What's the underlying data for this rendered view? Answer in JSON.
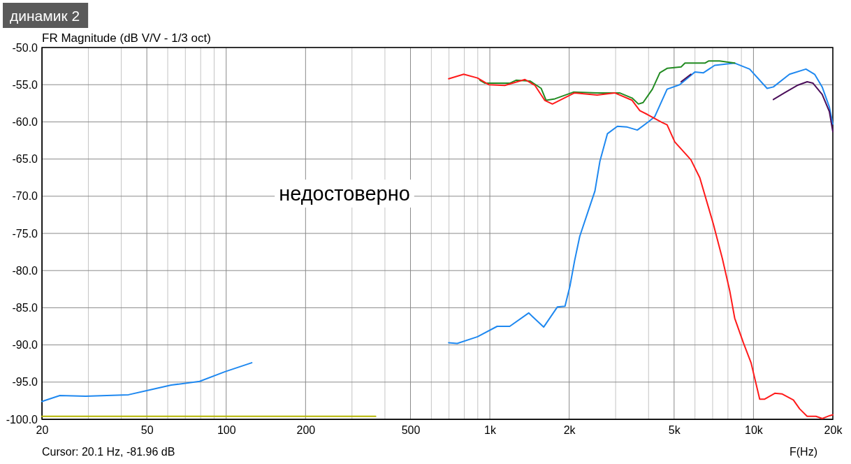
{
  "chart_data": {
    "type": "line",
    "title": "FR Magnitude (dB V/V - 1/3 oct)",
    "xlabel": "F(Hz)",
    "log": "x",
    "grid": true,
    "xlim": [
      20,
      20000
    ],
    "ylim": [
      -100,
      -50
    ],
    "xticks": [
      20,
      {
        "value": 30,
        "label": null
      },
      {
        "value": 40,
        "label": null
      },
      50,
      {
        "value": 60,
        "label": null
      },
      {
        "value": 70,
        "label": null
      },
      {
        "value": 80,
        "label": null
      },
      {
        "value": 90,
        "label": null
      },
      100,
      200,
      {
        "value": 300,
        "label": null
      },
      {
        "value": 400,
        "label": null
      },
      500,
      {
        "value": 600,
        "label": null
      },
      {
        "value": 700,
        "label": null
      },
      {
        "value": 800,
        "label": null
      },
      {
        "value": 900,
        "label": null
      },
      {
        "value": 1000,
        "label": "1k"
      },
      {
        "value": 2000,
        "label": "2k"
      },
      {
        "value": 3000,
        "label": null
      },
      {
        "value": 4000,
        "label": null
      },
      {
        "value": 5000,
        "label": "5k"
      },
      {
        "value": 6000,
        "label": null
      },
      {
        "value": 7000,
        "label": null
      },
      {
        "value": 8000,
        "label": null
      },
      {
        "value": 9000,
        "label": null
      },
      {
        "value": 10000,
        "label": "10k"
      },
      {
        "value": 20000,
        "label": "20k"
      }
    ],
    "yticks": [
      {
        "value": -50,
        "label": "-50.0"
      },
      {
        "value": -55,
        "label": "-55.0"
      },
      {
        "value": -60,
        "label": "-60.0"
      },
      {
        "value": -65,
        "label": "-65.0"
      },
      {
        "value": -70,
        "label": "-70.0"
      },
      {
        "value": -75,
        "label": "-75.0"
      },
      {
        "value": -80,
        "label": "-80.0"
      },
      {
        "value": -85,
        "label": "-85.0"
      },
      {
        "value": -90,
        "label": "-90.0"
      },
      {
        "value": -95,
        "label": "-95.0"
      },
      {
        "value": -100,
        "label": "-100.0"
      }
    ],
    "line_style": "solid",
    "annotations": [
      "динамик 2",
      "недостоверно",
      "Cursor: 20.1 Hz, -81.96 dB"
    ],
    "series": [
      {
        "color": "#b5b500",
        "x": [
          20,
          369
        ],
        "values": [
          -99.6,
          -99.6
        ]
      },
      {
        "color": "#1e88f0",
        "x": [
          20,
          23.4,
          29.3,
          42.6,
          50.6,
          61.9,
          79.3,
          99,
          125,
          300,
          698,
          752,
          898,
          1066,
          1190,
          1404,
          1600,
          1803,
          1928,
          2013,
          2096,
          2193,
          2397,
          2504,
          2615,
          2792,
          3047,
          3320,
          3626,
          3957,
          4223,
          4703,
          5248,
          5992,
          6461,
          7125,
          8488,
          9670,
          11265,
          11900,
          13695,
          15810,
          17060,
          18220,
          19400,
          20000
        ],
        "values": [
          -97.6,
          -96.8,
          -96.9,
          -96.7,
          -96.1,
          -95.4,
          -94.9,
          -93.6,
          -92.4,
          null,
          -89.7,
          -89.8,
          -88.9,
          -87.5,
          -87.5,
          -85.7,
          -87.6,
          -84.9,
          -84.8,
          -82.1,
          -78.7,
          -75.4,
          -71.3,
          -69.3,
          -65.3,
          -61.6,
          -60.6,
          -60.7,
          -61.1,
          -60.1,
          -59.3,
          -55.6,
          -55,
          -53.3,
          -53.4,
          -52.4,
          -52.1,
          -52.9,
          -55.5,
          -55.3,
          -53.6,
          -52.9,
          -53.6,
          -55.3,
          -58,
          -60.3
        ]
      },
      {
        "color": "#228b22",
        "x": [
          917,
          959,
          1190,
          1257,
          1420,
          1566,
          1635,
          1766,
          2075,
          2553,
          3105,
          3465,
          3662,
          3815,
          4136,
          4415,
          4703,
          5315,
          5497,
          6543,
          6770,
          7435,
          8488
        ],
        "values": [
          -54.4,
          -54.8,
          -54.8,
          -54.4,
          -54.5,
          -55.5,
          -57.1,
          -56.9,
          -56,
          -56.1,
          -56.1,
          -56.8,
          -57.6,
          -57.4,
          -55.6,
          -53.4,
          -52.8,
          -52.6,
          -52.1,
          -52.1,
          -51.8,
          -51.8,
          -52.1
        ]
      },
      {
        "color": "#ff1a1a",
        "x": [
          698,
          796,
          898,
          991,
          1140,
          1359,
          1483,
          1615,
          1727,
          2096,
          2553,
          2975,
          3465,
          3707,
          3957,
          4507,
          4703,
          5030,
          5789,
          6256,
          7039,
          7623,
          8126,
          8488,
          9153,
          9791,
          10559,
          11000,
          12046,
          12855,
          14170,
          14970,
          15980,
          17260,
          18250,
          19500,
          20000
        ],
        "values": [
          -54.2,
          -53.6,
          -54.1,
          -55,
          -55.1,
          -54.3,
          -55.1,
          -57.1,
          -57.6,
          -56.1,
          -56.4,
          -56.1,
          -57.1,
          -58.5,
          -59,
          -60.1,
          -60.4,
          -62.7,
          -65.1,
          -67.5,
          -73.7,
          -78.4,
          -82.7,
          -86.4,
          -89.7,
          -92.4,
          -97.3,
          -97.3,
          -96.5,
          -96.6,
          -97.4,
          -98.6,
          -99.6,
          -99.6,
          -99.9,
          -99.5,
          -99.4
        ]
      },
      {
        "color": "#4b0f5a",
        "x": [
          5315,
          5789,
          8000,
          11900,
          13105,
          14640,
          15980,
          16820,
          18220,
          19400,
          20000
        ],
        "values": [
          -54.6,
          -53.6,
          null,
          -57,
          -56.1,
          -55.1,
          -54.6,
          -54.8,
          -56.3,
          -58.6,
          -61.3
        ]
      }
    ]
  }
}
